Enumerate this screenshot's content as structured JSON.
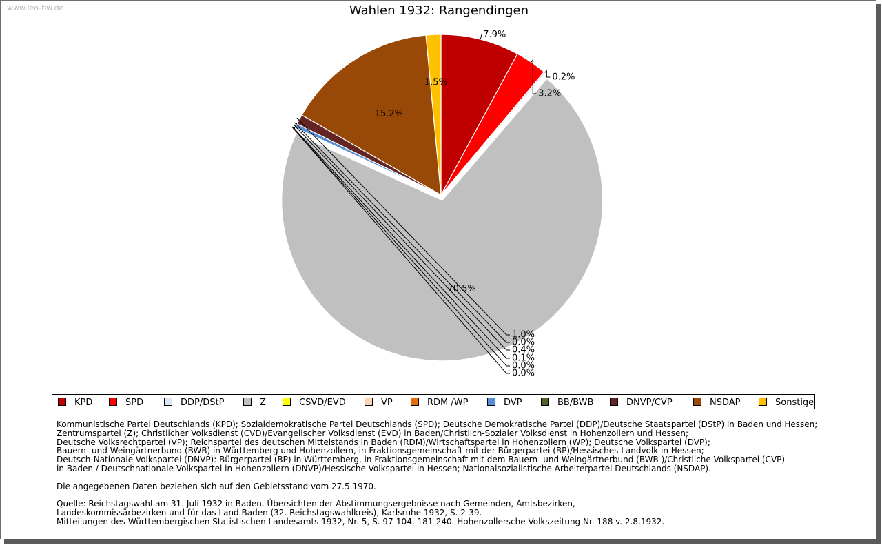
{
  "site": "www.leo-bw.de",
  "chart_data": {
    "type": "pie",
    "title": "Wahlen 1932: Rangendingen",
    "slices": [
      {
        "label": "KPD",
        "value": 7.9,
        "text": "7.9%",
        "color": "#c00000"
      },
      {
        "label": "SPD",
        "value": 3.2,
        "text": "3.2%",
        "color": "#ff0000"
      },
      {
        "label": "DDP/DStP",
        "value": 0.2,
        "text": "0.2%",
        "color": "#dce6f2"
      },
      {
        "label": "Z",
        "value": 70.5,
        "text": "70.5%",
        "color": "#c0c0c0"
      },
      {
        "label": "CSVD/EVD",
        "value": 0.0,
        "text": "0.0%",
        "color": "#ffff00"
      },
      {
        "label": "VP",
        "value": 0.0,
        "text": "0.0%",
        "color": "#fcd5b5"
      },
      {
        "label": "RDM /WP",
        "value": 0.1,
        "text": "0.1%",
        "color": "#e46c0a"
      },
      {
        "label": "DVP",
        "value": 0.4,
        "text": "0.4%",
        "color": "#558ed5"
      },
      {
        "label": "BB/BWB",
        "value": 0.0,
        "text": "0.0%",
        "color": "#4f6228"
      },
      {
        "label": "DNVP/CVP",
        "value": 1.0,
        "text": "1.0%",
        "color": "#632523"
      },
      {
        "label": "NSDAP",
        "value": 15.2,
        "text": "15.2%",
        "color": "#984807"
      },
      {
        "label": "Sonstige",
        "value": 1.5,
        "text": "1.5%",
        "color": "#ffc000"
      }
    ],
    "legend": [
      "KPD",
      "SPD",
      "DDP/DStP",
      "Z",
      "CSVD/EVD",
      "VP",
      "RDM /WP",
      "DVP",
      "BB/BWB",
      "DNVP/CVP",
      "NSDAP",
      "Sonstige"
    ],
    "legend_position": "bottom"
  },
  "notes": {
    "parties": [
      "Kommunistische Partei Deutschlands (KPD); Sozialdemokratische Partei Deutschlands (SPD); Deutsche Demokratische Partei (DDP)/Deutsche Staatspartei (DStP) in Baden und Hessen;",
      "Zentrumspartei (Z); Christlicher Volksdienst (CVD)/Evangelischer Volksdienst (EVD) in Baden/Christlich-Sozialer Volksdienst in Hohenzollern und Hessen;",
      "Deutsche Volksrechtpartei (VP); Reichspartei des deutschen Mittelstands in Baden (RDM)/Wirtschaftspartei in Hohenzollern (WP); Deutsche Volkspartei (DVP);",
      "Bauern- und Weingärtnerbund (BWB) in Württemberg und Hohenzollern, in Fraktionsgemeinschaft mit der Bürgerpartei (BP)/Hessisches Landvolk in Hessen;",
      "Deutsch-Nationale Volkspartei (DNVP): Bürgerpartei (BP) in Württemberg, in Fraktionsgemeinschaft mit dem Bauern- und Weingärtnerbund (BWB )/Christliche Volkspartei (CVP)",
      "in Baden / Deutschnationale Volkspartei in Hohenzollern (DNVP)/Hessische Volkspartei in Hessen; Nationalsozialistische Arbeiterpartei Deutschlands (NSDAP)."
    ],
    "territory": "Die angegebenen Daten beziehen sich auf den Gebietsstand vom 27.5.1970.",
    "source": [
      "Quelle: Reichstagswahl am 31. Juli 1932 in Baden. Übersichten der Abstimmungsergebnisse nach Gemeinden, Amtsbezirken,",
      "Landeskommissärbezirken und für das Land Baden (32. Reichstagswahlkreis), Karlsruhe 1932, S. 2-39.",
      "Mitteilungen des Württembergischen Statistischen Landesamts 1932, Nr. 5, S. 97-104, 181-240. Hohenzollersche Volkszeitung Nr. 188 v. 2.8.1932."
    ]
  }
}
